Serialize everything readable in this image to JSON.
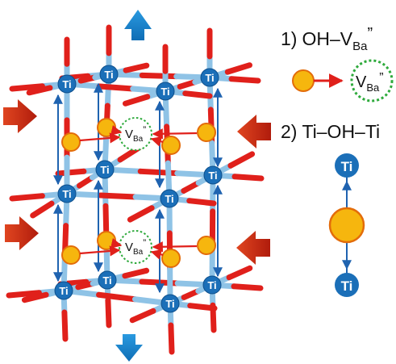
{
  "legend": {
    "item1": {
      "number": "1)",
      "main": "OH–V",
      "sub": "Ba",
      "sup": "”"
    },
    "item2": {
      "number": "2)",
      "text": "Ti–OH–Ti"
    }
  },
  "labels": {
    "ti": "Ti",
    "vacancy_main": "V",
    "vacancy_sub": "Ba",
    "vacancy_sup": "”"
  },
  "colors": {
    "oxygen_bond": "#e0201b",
    "ti_bond": "#8fc3e6",
    "ti_atom": "#1b6fb8",
    "oh_group": "#f6b60e",
    "oh_outline": "#e36c0a",
    "vacancy_ring": "#2eaa3c",
    "stress_arrow_red": "#c9290e",
    "stress_arrow_blue": "#1580c8",
    "hop_arrow": "#1f63b0",
    "shift_arrow": "#e0201b"
  }
}
